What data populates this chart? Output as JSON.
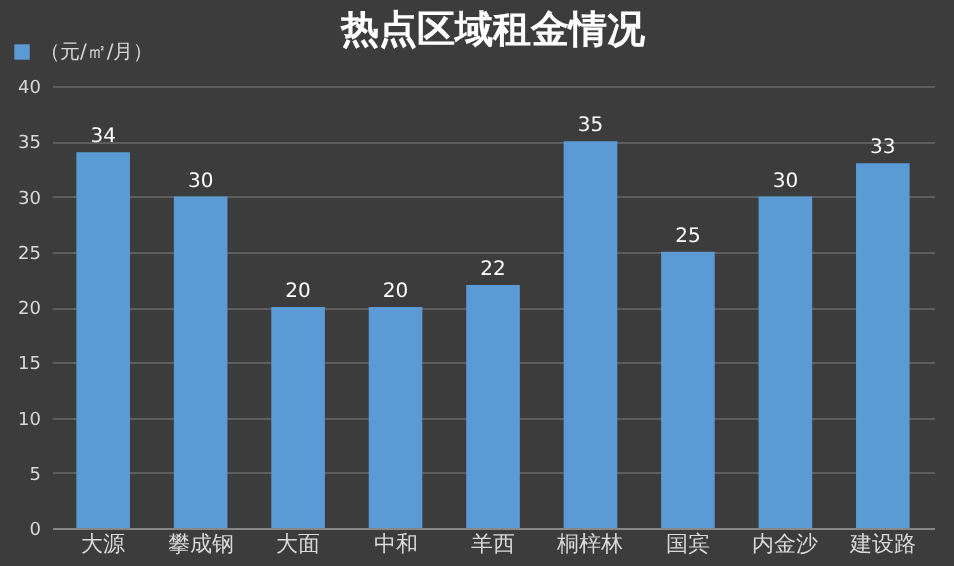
{
  "chart_data": {
    "type": "bar",
    "title": "热点区域租金情况",
    "categories": [
      "大源",
      "攀成钢",
      "大面",
      "中和",
      "羊西",
      "桐梓林",
      "国宾",
      "内金沙",
      "建设路"
    ],
    "series": [
      {
        "name": "（元/㎡/月）",
        "color": "#5b9bd5",
        "values": [
          34,
          30,
          20,
          20,
          22,
          35,
          25,
          30,
          33
        ]
      }
    ],
    "ylim": [
      0,
      40
    ],
    "yticks": [
      0,
      5,
      10,
      15,
      20,
      25,
      30,
      35,
      40
    ],
    "grid": "y",
    "legend": "top left",
    "data_labels": true
  }
}
